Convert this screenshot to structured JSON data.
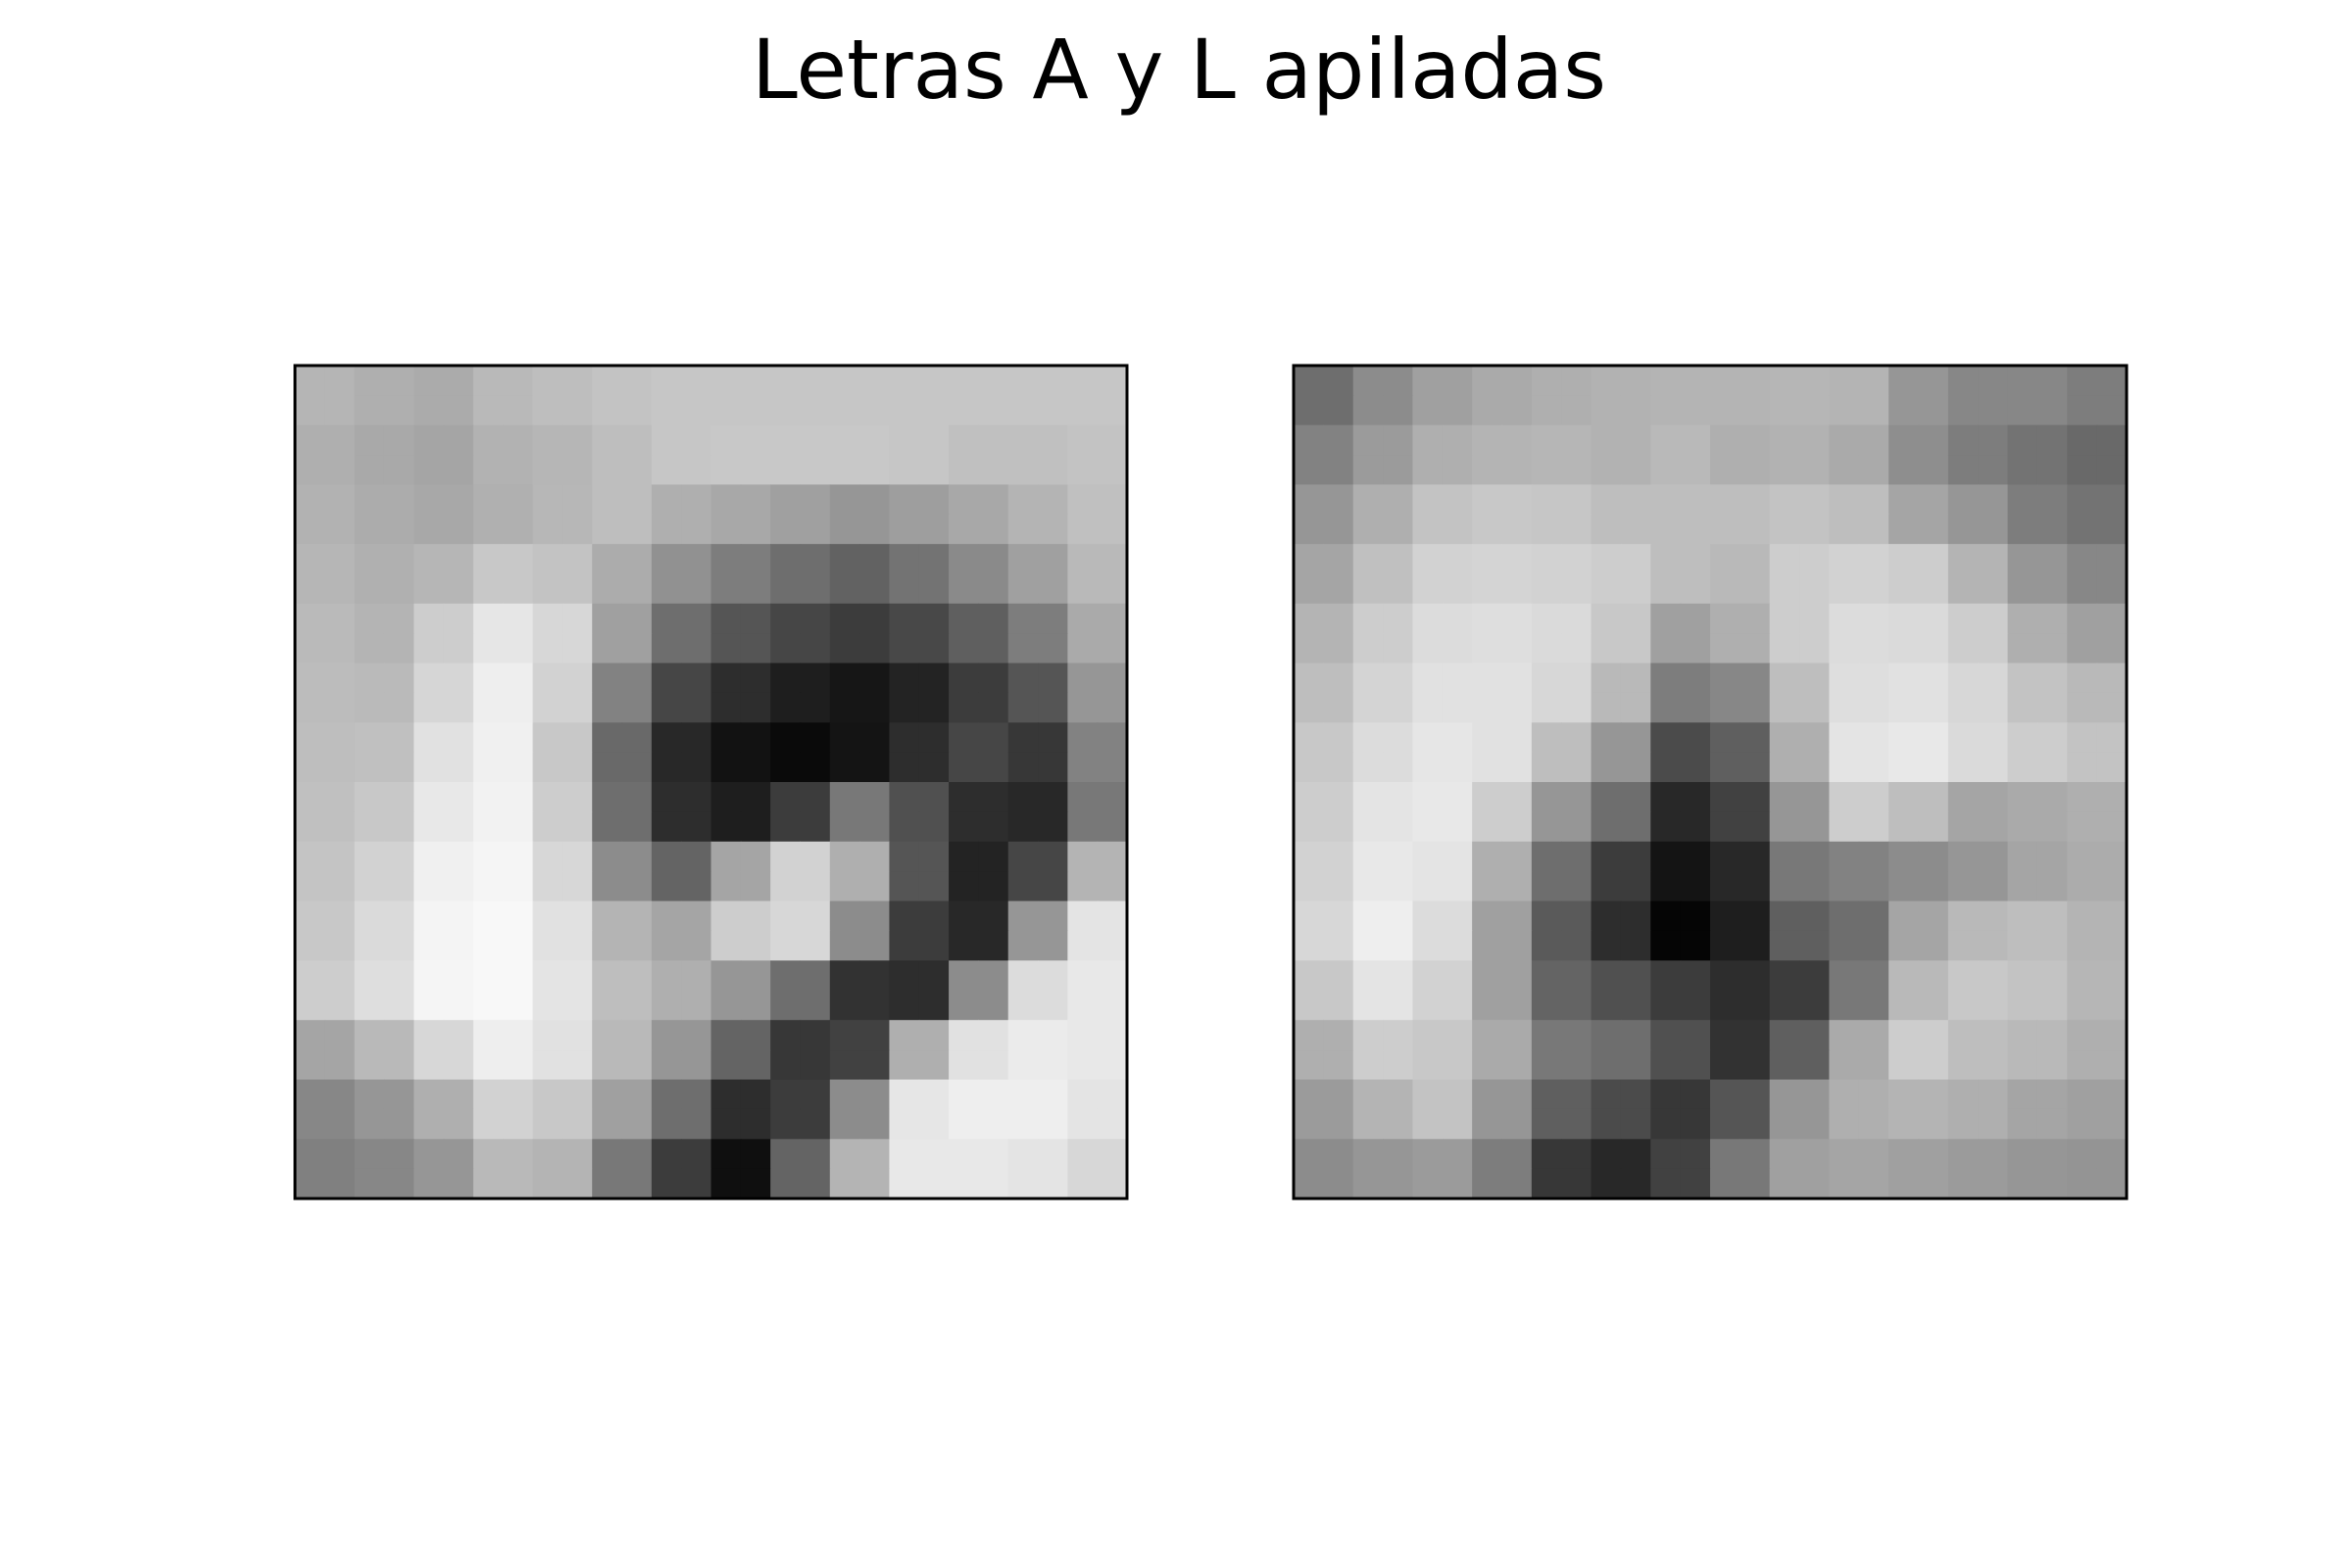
{
  "chart_data": {
    "type": "heatmap",
    "title": "Letras A y L apiladas",
    "colormap": "gray",
    "xlabel": "",
    "ylabel": "",
    "ticks": "none",
    "rows": 28,
    "cols": 28,
    "panels": [
      {
        "description_ref": "left-panel",
        "value_range": [
          0,
          255
        ],
        "values": [
          "181 181 175 175 171 171 185 185 190 190 195 195 198 198 198 198 198 198 198 198 198 198 198 198 198 198 198 198",
          "181 181 175 175 171 171 185 185 190 190 195 195 198 198 198 198 198 198 198 198 198 198 198 198 198 198 198 198",
          "175 175 169 169 165 165 178 178 182 182 190 190 198 198 200 200 200 200 200 200 198 198 192 192 192 192 195 195",
          "175 175 169 169 165 165 178 178 182 182 190 190 198 198 200 200 200 200 200 200 198 198 192 192 192 192 195 195",
          "178 178 172 172 168 168 176 176 183 183 190 190 175 175 168 168 160 160 150 150 158 158 168 168 180 180 192 192",
          "178 178 172 172 168 168 176 176 183 183 190 190 175 175 168 168 160 160 150 150 158 158 168 168 180 180 192 192",
          "182 182 176 176 182 182 200 200 195 195 172 172 145 145 125 125 110 110 98 98 115 115 138 138 160 160 185 185",
          "182 182 176 176 182 182 200 200 195 195 172 172 145 145 125 125 110 110 98 98 115 115 138 138 160 160 185 185",
          "186 186 180 180 205 205 230 230 215 215 160 160 110 110 85 85 70 70 60 60 72 72 95 95 125 125 170 170",
          "186 186 180 180 205 205 230 230 215 215 160 160 110 110 85 85 70 70 60 60 72 72 95 95 125 125 170 170",
          "188 188 186 186 214 214 238 238 210 210 130 130 70 70 45 45 30 30 22 22 35 35 60 60 85 85 150 150",
          "188 188 186 186 214 214 238 238 210 210 130 130 70 70 45 45 30 30 22 22 35 35 60 60 85 85 150 150",
          "190 190 192 192 225 225 240 240 200 200 105 105 40 40 18 18 10 10 20 20 45 45 70 70 55 55 130 130",
          "190 190 192 192 225 225 240 240 200 200 105 105 40 40 18 18 10 10 20 20 45 45 70 70 55 55 130 130",
          "192 192 200 200 232 232 242 242 205 205 110 110 45 45 30 30 60 60 120 120 80 80 45 45 40 40 120 120",
          "192 192 200 200 232 232 242 242 205 205 110 110 45 45 30 30 60 60 120 120 80 80 45 45 40 40 120 120",
          "196 196 210 210 240 240 245 245 215 215 140 140 100 100 165 165 210 210 175 175 85 85 35 35 70 70 180 180",
          "196 196 210 210 240 240 245 245 215 215 140 140 100 100 165 165 210 210 175 175 85 85 35 35 70 70 180 180",
          "200 200 218 218 244 244 248 248 225 225 180 180 165 165 205 205 215 215 140 140 60 60 40 40 150 150 228 228",
          "200 200 218 218 244 244 248 248 225 225 180 180 165 165 205 205 215 215 140 140 60 60 40 40 150 150 228 228",
          "205 205 222 222 245 245 248 248 228 228 190 190 175 175 150 150 110 110 50 50 45 45 140 140 220 220 232 232",
          "205 205 222 222 245 245 248 248 228 228 190 190 175 175 150 150 110 110 50 50 45 45 140 140 220 220 232 232",
          "165 165 185 185 215 215 238 238 225 225 185 185 150 150 100 100 55 55 65 65 175 175 225 225 235 235 232 232",
          "165 165 185 185 215 215 238 238 225 225 185 185 150 150 100 100 55 55 65 65 175 175 225 225 235 235 232 232",
          "135 135 150 150 175 175 210 210 200 200 160 160 110 110 45 45 60 60 140 140 230 230 238 238 238 238 228 228",
          "135 135 150 150 175 175 210 210 200 200 160 160 110 110 45 45 60 60 140 140 230 230 238 238 238 238 228 228",
          "128 128 135 135 150 150 185 185 180 180 120 120 60 60 15 15 100 100 180 180 232 232 232 232 228 228 215 215",
          "128 128 135 135 150 150 185 185 180 180 120 120 60 60 15 15 100 100 180 180 232 232 232 232 228 228 215 215"
        ]
      },
      {
        "description_ref": "right-panel",
        "value_range": [
          0,
          255
        ],
        "values": [
          "110 110 140 140 160 160 170 170 175 175 178 178 180 180 180 180 182 182 180 180 150 150 135 135 135 135 125 125",
          "110 110 140 140 160 160 170 170 175 175 178 178 180 180 180 180 182 182 180 180 150 150 135 135 135 135 125 125",
          "130 130 155 155 175 175 180 180 182 182 178 178 185 185 175 175 178 178 170 170 142 142 125 125 115 115 105 105",
          "130 130 155 155 175 175 180 180 182 182 178 178 185 185 175 175 178 178 170 170 142 142 125 125 115 115 105 105",
          "150 150 175 175 195 195 200 200 198 198 190 190 190 190 190 190 195 195 190 190 165 165 150 150 125 125 115 115",
          "150 150 175 175 195 195 200 200 198 198 190 190 190 190 190 190 195 195 190 190 165 165 150 150 125 125 115 115",
          "165 165 192 192 210 210 212 212 210 210 205 205 190 190 185 185 205 205 210 210 205 205 180 180 150 150 135 135",
          "165 165 192 192 210 210 212 212 210 210 205 205 190 190 185 185 205 205 210 210 205 205 180 180 150 150 135 135",
          "180 180 205 205 220 220 222 222 218 218 200 200 160 160 175 175 205 205 220 220 218 218 205 205 175 175 160 160",
          "180 180 205 205 220 220 222 222 218 218 200 200 160 160 175 175 205 205 220 220 218 218 205 205 175 175 160 160",
          "190 190 212 212 225 225 225 225 215 215 185 185 125 125 135 135 190 190 222 222 225 225 215 215 195 195 185 185",
          "190 190 212 212 225 225 225 225 215 215 185 185 125 125 135 135 190 190 222 222 225 225 215 215 195 195 185 185",
          "200 200 220 220 230 230 225 225 190 190 150 150 75 75 95 95 175 175 228 228 232 232 218 218 205 205 195 195",
          "200 200 220 220 230 230 225 225 190 190 150 150 75 75 95 95 175 175 228 228 232 232 218 218 205 205 195 195",
          "205 205 228 228 232 232 205 205 150 150 110 110 40 40 65 65 150 150 205 205 190 190 165 165 170 170 175 175",
          "205 205 228 228 232 232 205 205 150 150 110 110 40 40 65 65 150 150 205 205 190 190 165 165 170 170 175 175",
          "210 210 232 232 228 228 175 175 110 110 60 60 20 20 40 40 120 120 130 130 140 140 150 150 165 165 172 172",
          "210 210 232 232 228 228 175 175 110 110 60 60 20 20 40 40 120 120 130 130 140 140 150 150 165 165 172 172",
          "215 215 238 238 220 220 160 160 90 90 45 45 5 5 30 30 95 95 110 110 165 165 185 185 190 190 180 180",
          "215 215 238 238 220 220 160 160 90 90 45 45 5 5 30 30 95 95 110 110 165 165 185 185 190 190 180 180",
          "200 200 228 228 210 210 160 160 100 100 80 80 60 60 45 45 60 60 120 120 185 185 200 200 195 195 182 182",
          "200 200 228 228 210 210 160 160 100 100 80 80 60 60 45 45 60 60 120 120 185 185 200 200 195 195 182 182",
          "175 175 205 205 200 200 170 170 120 120 110 110 80 80 50 50 95 95 170 170 205 205 190 190 185 185 175 175",
          "175 175 205 205 200 200 170 170 120 120 110 110 80 80 50 50 95 95 170 170 205 205 190 190 185 185 175 175",
          "155 155 180 180 195 195 150 150 95 95 75 75 55 55 85 85 150 150 175 175 180 180 175 175 165 165 160 160",
          "155 155 180 180 195 195 150 150 95 95 75 75 55 55 85 85 150 150 175 175 180 180 175 175 165 165 160 160",
          "140 140 150 150 155 155 125 125 55 55 40 40 65 65 120 120 160 160 165 165 160 160 155 155 150 150 148 148",
          "140 140 150 150 155 155 125 125 55 55 40 40 65 65 120 120 160 160 165 165 160 160 155 155 150 150 148 148"
        ]
      }
    ]
  }
}
